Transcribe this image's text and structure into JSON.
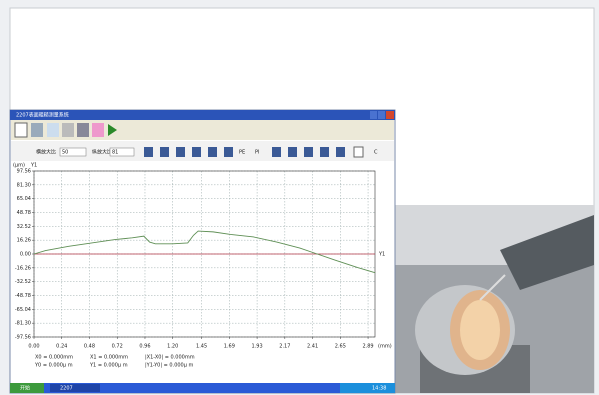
{
  "window": {
    "title": "2207表面粗糙测量系统",
    "h_scale_label": "横放大比",
    "h_scale_value": "50",
    "v_scale_label": "纵放大比",
    "v_scale_value": "81",
    "buttons": [
      "PE",
      "PI",
      "C"
    ]
  },
  "chart_data": {
    "type": "line",
    "y_unit": "(μm)",
    "x_unit": "(mm)",
    "y_axis_name": "Y1",
    "ref_line_label": "Y1",
    "x": [
      0,
      0.1,
      0.3,
      0.5,
      0.7,
      0.85,
      0.95,
      1.0,
      1.05,
      1.2,
      1.33,
      1.38,
      1.42,
      1.55,
      1.7,
      1.9,
      2.1,
      2.3,
      2.45,
      2.6,
      2.8,
      2.95
    ],
    "series": [
      {
        "color": "#5f8f55",
        "values": [
          0,
          4,
          9,
          13,
          17,
          19,
          21,
          14,
          12,
          12,
          13,
          22,
          27,
          26,
          23,
          20,
          14,
          7,
          0,
          -7,
          -16,
          -22
        ]
      }
    ],
    "reference_line": {
      "value": 0,
      "color": "#b03545"
    },
    "xlim": [
      0,
      2.95
    ],
    "ylim": [
      -97.56,
      97.56
    ],
    "xticks": [
      {
        "value": 0,
        "label": "0.00"
      },
      0.24,
      0.48,
      0.72,
      0.96,
      {
        "value": 1.2,
        "label": "1.20"
      },
      1.45,
      1.69,
      1.93,
      2.17,
      2.41,
      2.65,
      2.89
    ],
    "yticks": [
      97.56,
      {
        "value": 81.3,
        "label": "81.30"
      },
      65.04,
      48.78,
      32.52,
      16.26,
      {
        "value": 0,
        "label": "0.00"
      },
      -16.26,
      -32.52,
      -48.78,
      -65.04,
      {
        "value": -81.3,
        "label": "-81.30"
      },
      -97.56
    ],
    "grid": true
  },
  "readouts": [
    "X0 = 0.000mm",
    "Y0 = 0.000μ m",
    "X1 = 0.000mm",
    "Y1 = 0.000μ m",
    "|X1-X0| = 0.000mm",
    "|Y1-Y0| = 0.000μ m"
  ],
  "taskbar": {
    "start": "开始",
    "task": "2207",
    "clock": "14:38"
  }
}
